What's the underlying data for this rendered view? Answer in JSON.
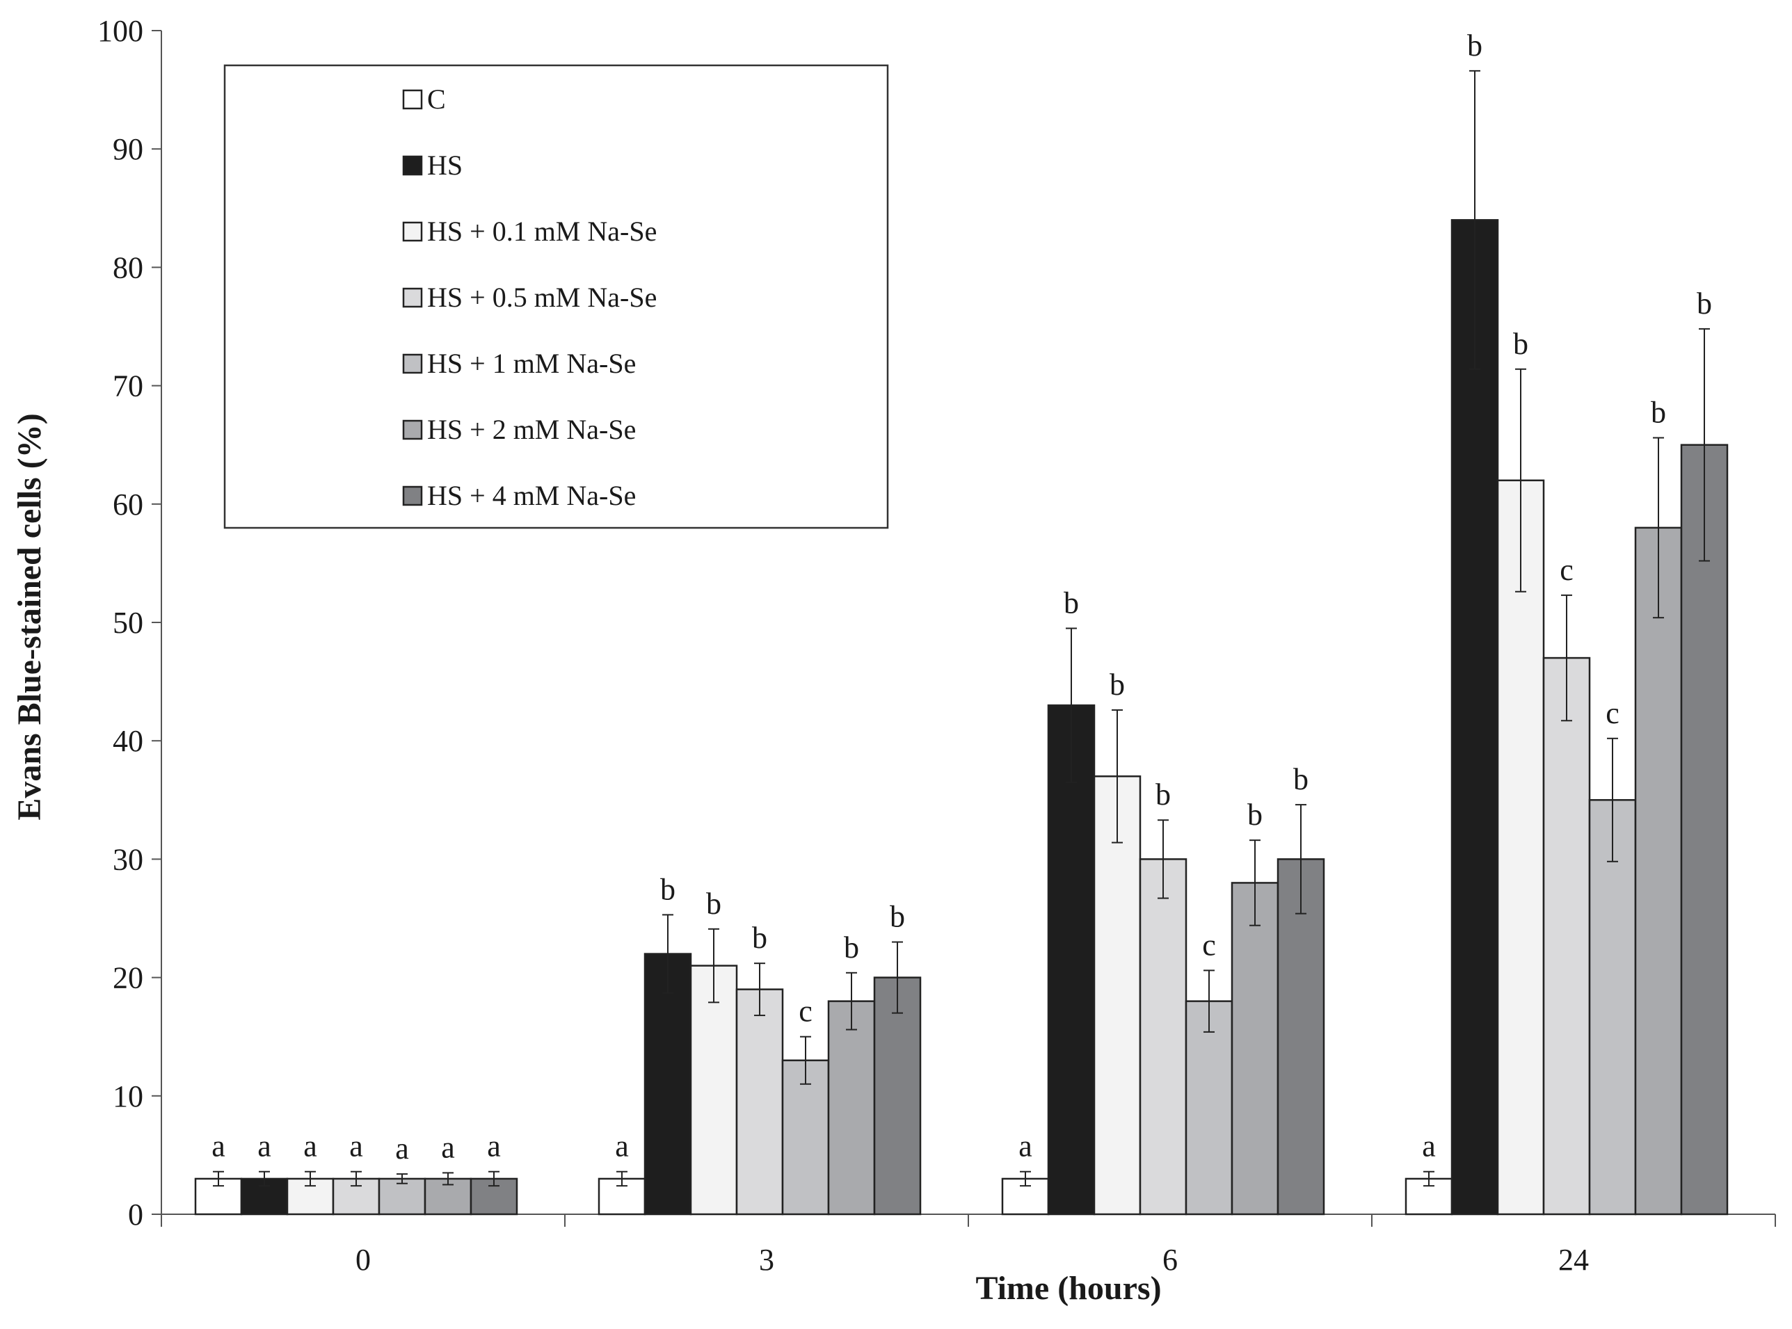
{
  "chart_data": {
    "type": "bar",
    "title": "",
    "xlabel": "Time (hours)",
    "ylabel": "Evans Blue-stained cells (%)",
    "ylim": [
      0,
      100
    ],
    "yticks": [
      0,
      10,
      20,
      30,
      40,
      50,
      60,
      70,
      80,
      90,
      100
    ],
    "grid": false,
    "legend_position": "top-left",
    "categories": [
      "0",
      "3",
      "6",
      "24"
    ],
    "series": [
      {
        "name": "C",
        "color": "#ffffff",
        "values": [
          3,
          3,
          3,
          3
        ],
        "errors": [
          0.6,
          0.6,
          0.6,
          0.6
        ],
        "labels": [
          "a",
          "a",
          "a",
          "a"
        ]
      },
      {
        "name": "HS",
        "color": "#1e1e1e",
        "values": [
          3,
          22,
          43,
          84
        ],
        "errors": [
          0.6,
          3.3,
          6.5,
          12.6
        ],
        "labels": [
          "a",
          "b",
          "b",
          "b"
        ]
      },
      {
        "name": "HS + 0.1 mM Na-Se",
        "color": "#f3f3f3",
        "values": [
          3,
          21,
          37,
          62
        ],
        "errors": [
          0.6,
          3.1,
          5.6,
          9.4
        ],
        "labels": [
          "a",
          "b",
          "b",
          "b"
        ]
      },
      {
        "name": "HS + 0.5 mM Na-Se",
        "color": "#dadadc",
        "values": [
          3,
          19,
          30,
          47
        ],
        "errors": [
          0.6,
          2.2,
          3.3,
          5.3
        ],
        "labels": [
          "a",
          "b",
          "b",
          "c"
        ]
      },
      {
        "name": "HS + 1 mM Na-Se",
        "color": "#c0c1c4",
        "values": [
          3,
          13,
          18,
          35
        ],
        "errors": [
          0.4,
          2.0,
          2.6,
          5.2
        ],
        "labels": [
          "a",
          "c",
          "c",
          "c"
        ]
      },
      {
        "name": "HS + 2 mM Na-Se",
        "color": "#a9aaad",
        "values": [
          3,
          18,
          28,
          58
        ],
        "errors": [
          0.5,
          2.4,
          3.6,
          7.6
        ],
        "labels": [
          "a",
          "b",
          "b",
          "b"
        ]
      },
      {
        "name": "HS + 4 mM Na-Se",
        "color": "#808184",
        "values": [
          3,
          20,
          30,
          65
        ],
        "errors": [
          0.6,
          3.0,
          4.6,
          9.8
        ],
        "labels": [
          "a",
          "b",
          "b",
          "b"
        ]
      }
    ]
  }
}
